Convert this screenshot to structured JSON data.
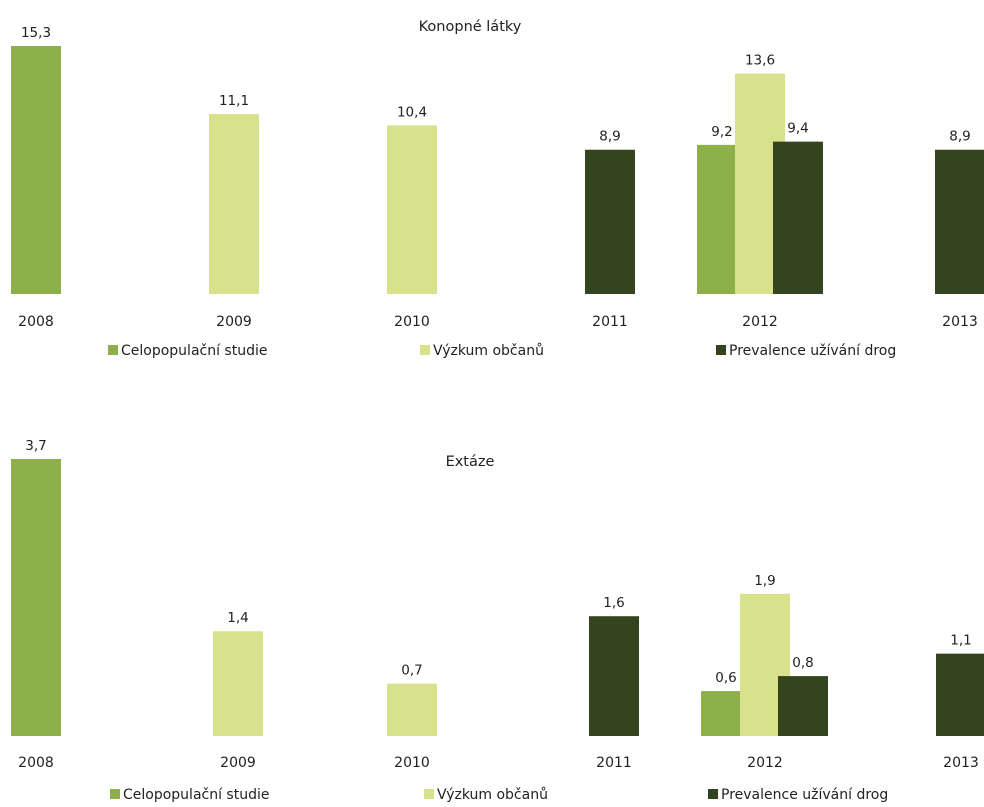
{
  "colors": {
    "celopopulacni": "#8DB04B",
    "vyzkum": "#D8E28C",
    "prevalence": "#33441F"
  },
  "chart_data": [
    {
      "type": "bar",
      "title": "Konopné látky",
      "categories": [
        "2008",
        "2009",
        "2010",
        "2011",
        "2012",
        "2013"
      ],
      "series": [
        {
          "name": "Celopopulační studie",
          "values": [
            15.3,
            null,
            null,
            null,
            9.2,
            null
          ],
          "labels": [
            "15,3",
            "",
            "",
            "",
            "9,2",
            ""
          ]
        },
        {
          "name": "Výzkum občanů",
          "values": [
            null,
            11.1,
            10.4,
            null,
            13.6,
            null
          ],
          "labels": [
            "",
            "11,1",
            "10,4",
            "",
            "13,6",
            ""
          ]
        },
        {
          "name": "Prevalence užívání drog",
          "values": [
            null,
            null,
            null,
            8.9,
            9.4,
            8.9
          ],
          "labels": [
            "",
            "",
            "",
            "8,9",
            "9,4",
            "8,9"
          ]
        }
      ],
      "legend": [
        "Celopopulační studie",
        "Výzkum občanů",
        "Prevalence užívání drog"
      ],
      "legend_position": "bottom",
      "grid": false
    },
    {
      "type": "bar",
      "title": "Extáze",
      "categories": [
        "2008",
        "2009",
        "2010",
        "2011",
        "2012",
        "2013"
      ],
      "series": [
        {
          "name": "Celopopulační studie",
          "values": [
            3.7,
            null,
            null,
            null,
            0.6,
            null
          ],
          "labels": [
            "3,7",
            "",
            "",
            "",
            "0,6",
            ""
          ]
        },
        {
          "name": "Výzkum občanů",
          "values": [
            null,
            1.4,
            0.7,
            null,
            1.9,
            null
          ],
          "labels": [
            "",
            "1,4",
            "0,7",
            "",
            "1,9",
            ""
          ]
        },
        {
          "name": "Prevalence užívání drog",
          "values": [
            null,
            null,
            null,
            1.6,
            0.8,
            1.1
          ],
          "labels": [
            "",
            "",
            "",
            "1,6",
            "0,8",
            "1,1"
          ]
        }
      ],
      "legend": [
        "Celopopulační studie",
        "Výzkum občanů",
        "Prevalence užívání drog"
      ],
      "legend_position": "bottom",
      "grid": false
    }
  ]
}
